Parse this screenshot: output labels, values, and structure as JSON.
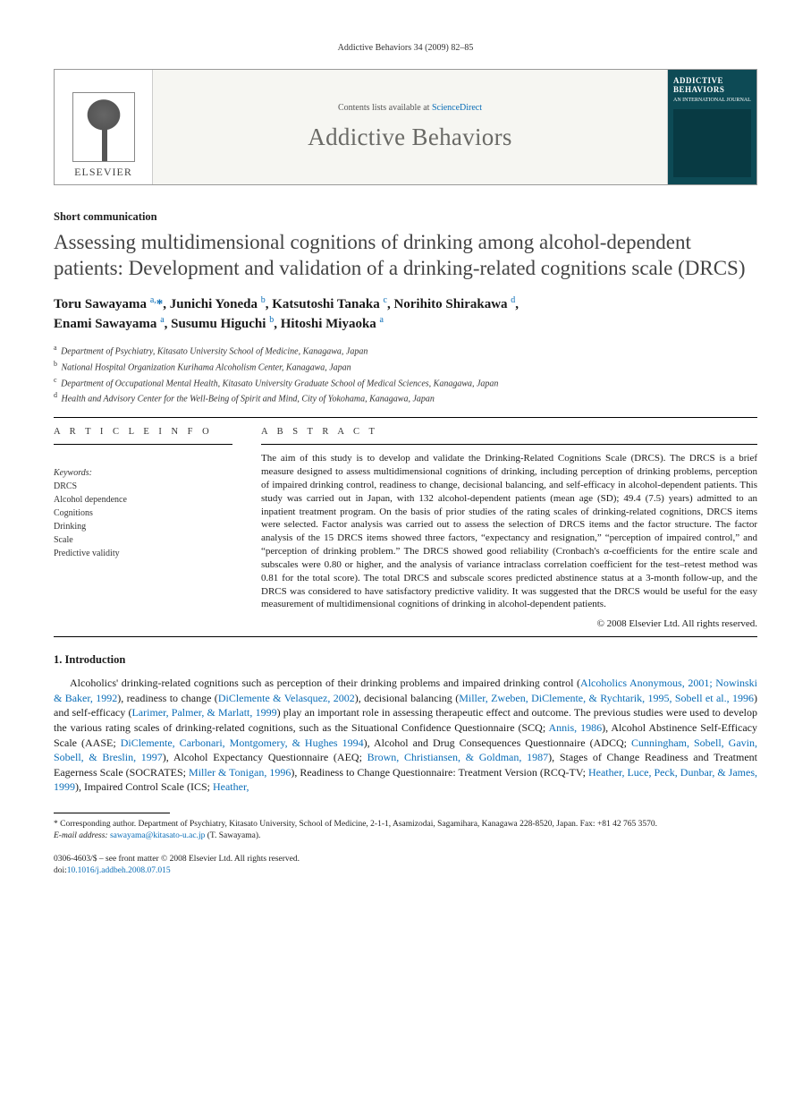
{
  "running_head": "Addictive Behaviors 34 (2009) 82–85",
  "masthead": {
    "publisher": "ELSEVIER",
    "contents_prefix": "Contents lists available at ",
    "contents_link": "ScienceDirect",
    "journal": "Addictive Behaviors",
    "cover_title_1": "ADDICTIVE",
    "cover_title_2": "BEHAVIORS",
    "cover_sub": "AN INTERNATIONAL JOURNAL"
  },
  "article": {
    "type": "Short communication",
    "title": "Assessing multidimensional cognitions of drinking among alcohol-dependent patients: Development and validation of a drinking-related cognitions scale (DRCS)",
    "authors_line1_html": "Toru Sawayama <sup>a,</sup><span class='star'>*</span>, Junichi Yoneda <sup>b</sup>, Katsutoshi Tanaka <sup>c</sup>, Norihito Shirakawa <sup>d</sup>,",
    "authors_line2_html": "Enami Sawayama <sup>a</sup>, Susumu Higuchi <sup>b</sup>, Hitoshi Miyaoka <sup>a</sup>"
  },
  "affiliations": [
    {
      "sup": "a",
      "text": "Department of Psychiatry, Kitasato University School of Medicine, Kanagawa, Japan"
    },
    {
      "sup": "b",
      "text": "National Hospital Organization Kurihama Alcoholism Center, Kanagawa, Japan"
    },
    {
      "sup": "c",
      "text": "Department of Occupational Mental Health, Kitasato University Graduate School of Medical Sciences, Kanagawa, Japan"
    },
    {
      "sup": "d",
      "text": "Health and Advisory Center for the Well-Being of Spirit and Mind, City of Yokohama, Kanagawa, Japan"
    }
  ],
  "info": {
    "head": "A R T I C L E   I N F O",
    "kw_label": "Keywords:",
    "keywords": [
      "DRCS",
      "Alcohol dependence",
      "Cognitions",
      "Drinking",
      "Scale",
      "Predictive validity"
    ]
  },
  "abstract": {
    "head": "A B S T R A C T",
    "text": "The aim of this study is to develop and validate the Drinking-Related Cognitions Scale (DRCS). The DRCS is a brief measure designed to assess multidimensional cognitions of drinking, including perception of drinking problems, perception of impaired drinking control, readiness to change, decisional balancing, and self-efficacy in alcohol-dependent patients. This study was carried out in Japan, with 132 alcohol-dependent patients (mean age (SD); 49.4 (7.5) years) admitted to an inpatient treatment program. On the basis of prior studies of the rating scales of drinking-related cognitions, DRCS items were selected. Factor analysis was carried out to assess the selection of DRCS items and the factor structure. The factor analysis of the 15 DRCS items showed three factors, “expectancy and resignation,” “perception of impaired control,” and “perception of drinking problem.” The DRCS showed good reliability (Cronbach's α-coefficients for the entire scale and subscales were 0.80 or higher, and the analysis of variance intraclass correlation coefficient for the test–retest method was 0.81 for the total score). The total DRCS and subscale scores predicted abstinence status at a 3-month follow-up, and the DRCS was considered to have satisfactory predictive validity. It was suggested that the DRCS would be useful for the easy measurement of multidimensional cognitions of drinking in alcohol-dependent patients.",
    "copyright": "© 2008 Elsevier Ltd. All rights reserved."
  },
  "section1": {
    "head": "1. Introduction",
    "p1_pre": "Alcoholics' drinking-related cognitions such as perception of their drinking problems and impaired drinking control (",
    "ref1": "Alcoholics Anonymous, 2001; Nowinski & Baker, 1992",
    "p1_a": "), readiness to change (",
    "ref2": "DiClemente & Velasquez, 2002",
    "p1_b": "), decisional balancing (",
    "ref3": "Miller, Zweben, DiClemente, & Rychtarik, 1995, Sobell et al., 1996",
    "p1_c": ") and self-efficacy (",
    "ref4": "Larimer, Palmer, & Marlatt, 1999",
    "p1_d": ") play an important role in assessing therapeutic effect and outcome. The previous studies were used to develop the various rating scales of drinking-related cognitions, such as the Situational Confidence Questionnaire (SCQ; ",
    "ref5": "Annis, 1986",
    "p1_e": "), Alcohol Abstinence Self-Efficacy Scale (AASE; ",
    "ref6": "DiClemente, Carbonari, Montgomery, & Hughes 1994",
    "p1_f": "), Alcohol and Drug Consequences Questionnaire (ADCQ; ",
    "ref7": "Cunningham, Sobell, Gavin, Sobell, & Breslin, 1997",
    "p1_g": "), Alcohol Expectancy Questionnaire (AEQ; ",
    "ref8": "Brown, Christiansen, & Goldman, 1987",
    "p1_h": "), Stages of Change Readiness and Treatment Eagerness Scale (SOCRATES; ",
    "ref9": "Miller & Tonigan, 1996",
    "p1_i": "), Readiness to Change Questionnaire: Treatment Version (RCQ-TV; ",
    "ref10": "Heather, Luce, Peck, Dunbar, & James, 1999",
    "p1_j": "), Impaired Control Scale (ICS; ",
    "ref11": "Heather,"
  },
  "footnote": {
    "star": "* ",
    "text": "Corresponding author. Department of Psychiatry, Kitasato University, School of Medicine, 2-1-1, Asamizodai, Sagamihara, Kanagawa 228-8520, Japan. Fax: +81 42 765 3570.",
    "email_label": "E-mail address: ",
    "email": "sawayama@kitasato-u.ac.jp",
    "email_who": " (T. Sawayama)."
  },
  "front_matter": {
    "line1_a": "0306-4603/$ – see front matter © 2008 Elsevier Ltd. All rights reserved.",
    "doi_label": "doi:",
    "doi": "10.1016/j.addbeh.2008.07.015"
  }
}
